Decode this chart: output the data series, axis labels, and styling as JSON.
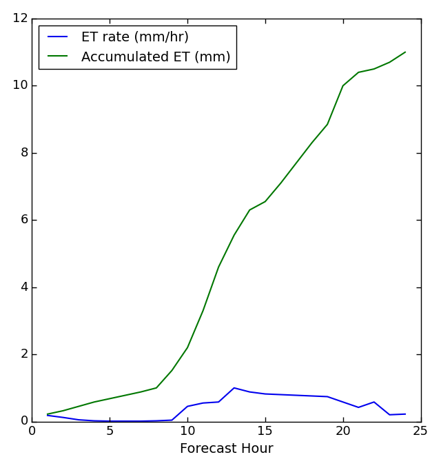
{
  "xlabel": "Forecast Hour",
  "ylabel": "",
  "xlim": [
    0,
    25
  ],
  "ylim": [
    0,
    12
  ],
  "xticks": [
    0,
    5,
    10,
    15,
    20,
    25
  ],
  "yticks": [
    0,
    2,
    4,
    6,
    8,
    10,
    12
  ],
  "et_rate_x": [
    1,
    2,
    3,
    4,
    5,
    6,
    7,
    8,
    9,
    10,
    11,
    12,
    13,
    14,
    15,
    16,
    17,
    18,
    19,
    20,
    21,
    22,
    23,
    24
  ],
  "et_rate_y": [
    0.18,
    0.12,
    0.05,
    0.02,
    0.01,
    0.01,
    0.01,
    0.02,
    0.04,
    0.45,
    0.55,
    0.58,
    1.0,
    0.88,
    0.82,
    0.8,
    0.78,
    0.76,
    0.74,
    0.58,
    0.42,
    0.58,
    0.2,
    0.22
  ],
  "accum_et_x": [
    1,
    2,
    3,
    4,
    5,
    6,
    7,
    8,
    9,
    10,
    11,
    12,
    13,
    14,
    15,
    16,
    17,
    18,
    19,
    20,
    21,
    22,
    23,
    24
  ],
  "accum_et_y": [
    0.22,
    0.32,
    0.45,
    0.58,
    0.68,
    0.78,
    0.88,
    1.0,
    1.52,
    2.2,
    3.3,
    4.6,
    5.55,
    6.3,
    6.55,
    7.1,
    7.7,
    8.3,
    8.85,
    10.0,
    10.4,
    10.5,
    10.7,
    11.0
  ],
  "et_rate_color": "#0000ee",
  "accum_et_color": "#007700",
  "et_rate_label": "ET rate (mm/hr)",
  "accum_et_label": "Accumulated ET (mm)",
  "line_width": 1.5,
  "legend_fontsize": 14,
  "tick_fontsize": 13,
  "label_fontsize": 14,
  "background_color": "#ffffff"
}
